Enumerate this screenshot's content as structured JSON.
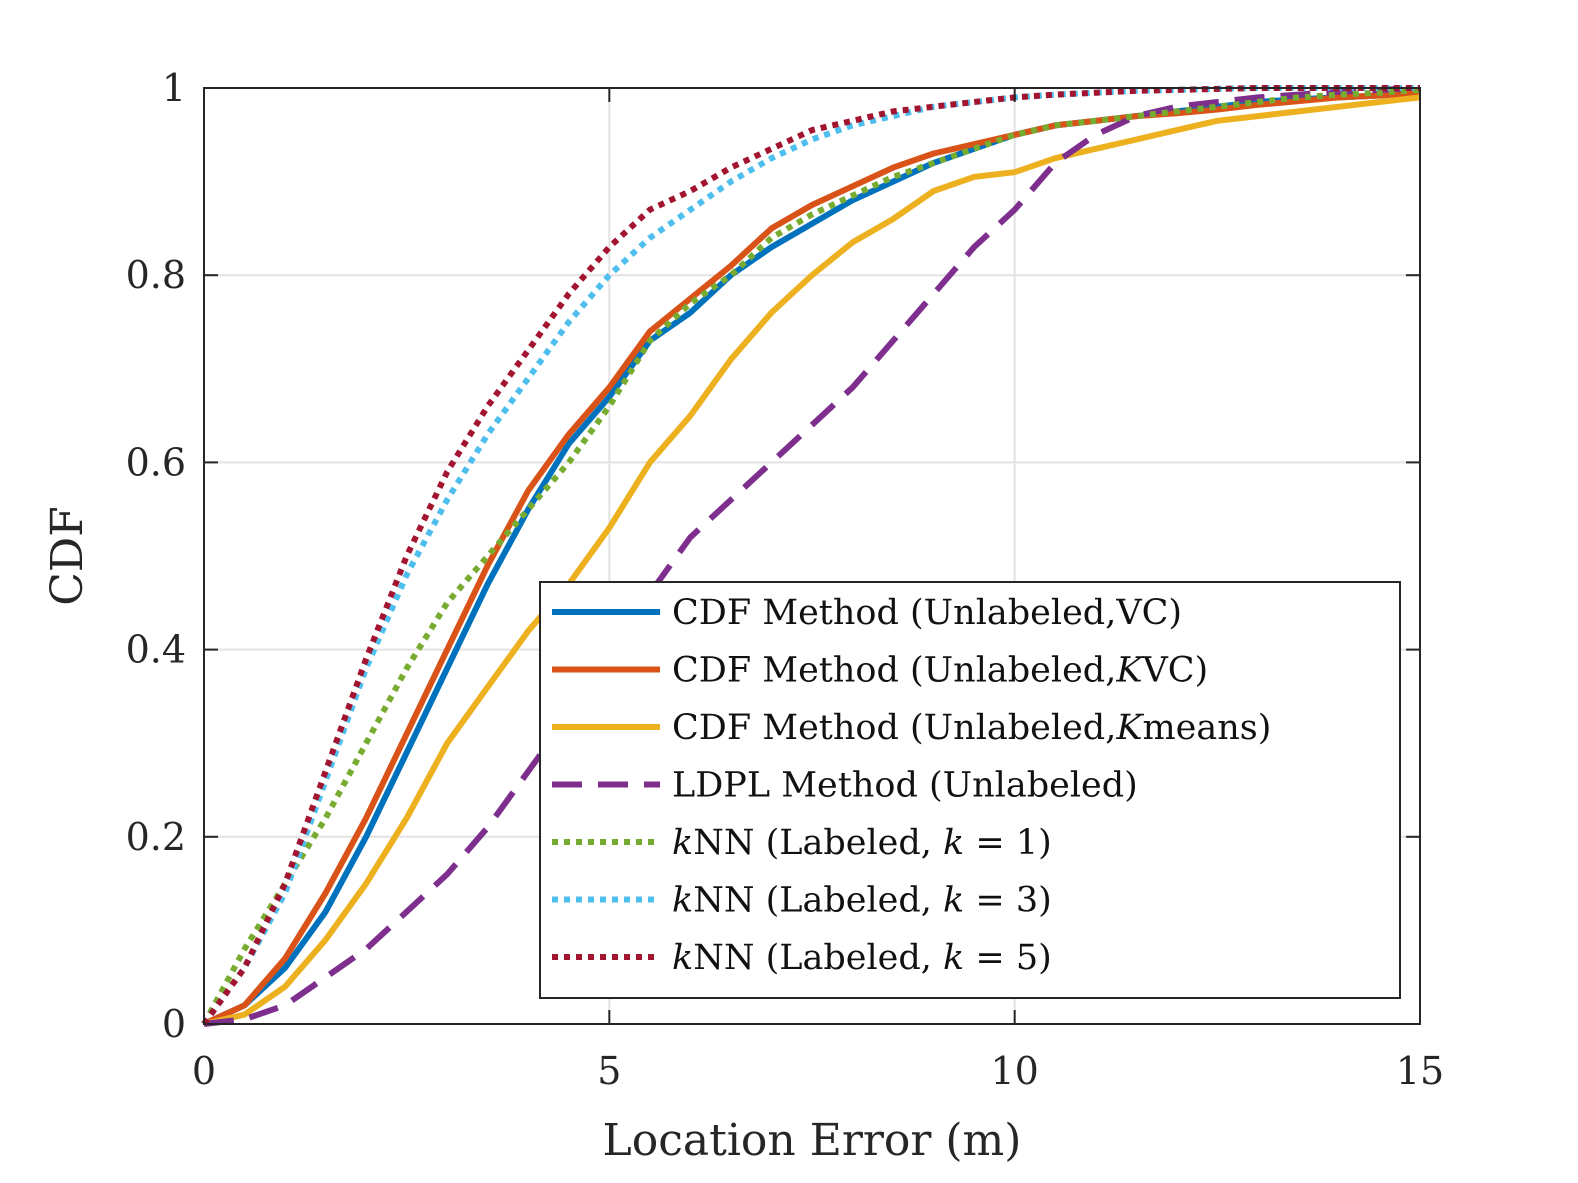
{
  "chart_data": {
    "type": "line",
    "title": "",
    "xlabel": "Location Error (m)",
    "ylabel": "CDF",
    "xlim": [
      0,
      15
    ],
    "ylim": [
      0,
      1
    ],
    "xticks": [
      0,
      5,
      10,
      15
    ],
    "xtick_labels": [
      "0",
      "5",
      "10",
      "15"
    ],
    "yticks": [
      0,
      0.2,
      0.4,
      0.6,
      0.8,
      1
    ],
    "ytick_labels": [
      "0",
      "0.2",
      "0.4",
      "0.6",
      "0.8",
      "1"
    ],
    "grid": true,
    "legend_position": "bottom-right",
    "series": [
      {
        "name": "CDF Method (Unlabeled,VC)",
        "color": "#0072BD",
        "dash": "solid",
        "x": [
          0,
          0.5,
          1,
          1.5,
          2,
          2.5,
          3,
          3.5,
          4,
          4.5,
          5,
          5.5,
          6,
          6.5,
          7,
          7.5,
          8,
          8.5,
          9,
          9.5,
          10,
          10.5,
          11,
          11.5,
          12,
          12.5,
          13,
          13.5,
          14,
          14.5,
          15
        ],
        "y": [
          0,
          0.02,
          0.06,
          0.12,
          0.2,
          0.29,
          0.38,
          0.47,
          0.55,
          0.62,
          0.67,
          0.73,
          0.76,
          0.8,
          0.83,
          0.855,
          0.88,
          0.9,
          0.92,
          0.935,
          0.95,
          0.96,
          0.965,
          0.97,
          0.975,
          0.98,
          0.985,
          0.988,
          0.99,
          0.992,
          0.995
        ]
      },
      {
        "name": "CDF Method (Unlabeled,KVC)",
        "color": "#D95319",
        "dash": "solid",
        "x": [
          0,
          0.5,
          1,
          1.5,
          2,
          2.5,
          3,
          3.5,
          4,
          4.5,
          5,
          5.5,
          6,
          6.5,
          7,
          7.5,
          8,
          8.5,
          9,
          9.5,
          10,
          10.5,
          11,
          11.5,
          12,
          12.5,
          13,
          13.5,
          14,
          14.5,
          15
        ],
        "y": [
          0,
          0.02,
          0.07,
          0.14,
          0.22,
          0.31,
          0.4,
          0.49,
          0.57,
          0.63,
          0.68,
          0.74,
          0.775,
          0.81,
          0.85,
          0.875,
          0.895,
          0.915,
          0.93,
          0.94,
          0.95,
          0.96,
          0.965,
          0.97,
          0.973,
          0.977,
          0.982,
          0.986,
          0.99,
          0.992,
          0.995
        ]
      },
      {
        "name": "CDF Method (Unlabeled,Kmeans)",
        "color": "#EDB120",
        "dash": "solid",
        "x": [
          0,
          0.5,
          1,
          1.5,
          2,
          2.5,
          3,
          3.5,
          4,
          4.5,
          5,
          5.5,
          6,
          6.5,
          7,
          7.5,
          8,
          8.5,
          9,
          9.5,
          10,
          10.5,
          11,
          11.5,
          12,
          12.5,
          13,
          13.5,
          14,
          14.5,
          15
        ],
        "y": [
          0,
          0.01,
          0.04,
          0.09,
          0.15,
          0.22,
          0.3,
          0.36,
          0.42,
          0.47,
          0.53,
          0.6,
          0.65,
          0.71,
          0.76,
          0.8,
          0.835,
          0.86,
          0.89,
          0.905,
          0.91,
          0.925,
          0.935,
          0.945,
          0.955,
          0.965,
          0.97,
          0.975,
          0.98,
          0.985,
          0.99
        ]
      },
      {
        "name": "LDPL Method (Unlabeled)",
        "color": "#7E2F8E",
        "dash": "dashed",
        "x": [
          0,
          0.5,
          1,
          1.5,
          2,
          2.5,
          3,
          3.5,
          4,
          4.5,
          5,
          5.5,
          6,
          6.5,
          7,
          7.5,
          8,
          8.5,
          9,
          9.5,
          10,
          10.5,
          11,
          11.5,
          12,
          12.5,
          13,
          13.5,
          14,
          14.5,
          15
        ],
        "y": [
          0,
          0.005,
          0.02,
          0.05,
          0.08,
          0.12,
          0.16,
          0.21,
          0.27,
          0.33,
          0.39,
          0.46,
          0.52,
          0.56,
          0.6,
          0.64,
          0.68,
          0.73,
          0.78,
          0.83,
          0.87,
          0.92,
          0.95,
          0.97,
          0.98,
          0.985,
          0.99,
          0.993,
          0.996,
          0.998,
          1
        ]
      },
      {
        "name": "kNN (Labeled, k = 1)",
        "color": "#77AC30",
        "dash": "dotted",
        "x": [
          0,
          0.5,
          1,
          1.5,
          2,
          2.5,
          3,
          3.5,
          4,
          4.5,
          5,
          5.5,
          6,
          6.5,
          7,
          7.5,
          8,
          8.5,
          9,
          9.5,
          10,
          10.5,
          11,
          11.5,
          12,
          12.5,
          13,
          13.5,
          14,
          14.5,
          15
        ],
        "y": [
          0,
          0.08,
          0.15,
          0.22,
          0.3,
          0.38,
          0.45,
          0.5,
          0.55,
          0.6,
          0.66,
          0.73,
          0.77,
          0.8,
          0.84,
          0.865,
          0.885,
          0.905,
          0.92,
          0.935,
          0.95,
          0.96,
          0.965,
          0.97,
          0.975,
          0.98,
          0.985,
          0.99,
          0.993,
          0.995,
          0.998
        ]
      },
      {
        "name": "kNN (Labeled, k = 3)",
        "color": "#4DBEEE",
        "dash": "dotted",
        "x": [
          0,
          0.5,
          1,
          1.5,
          2,
          2.5,
          3,
          3.5,
          4,
          4.5,
          5,
          5.5,
          6,
          6.5,
          7,
          7.5,
          8,
          8.5,
          9,
          9.5,
          10,
          10.5,
          11,
          11.5,
          12,
          12.5,
          13,
          13.5,
          14,
          14.5,
          15
        ],
        "y": [
          0,
          0.06,
          0.14,
          0.26,
          0.38,
          0.48,
          0.56,
          0.63,
          0.69,
          0.75,
          0.8,
          0.84,
          0.87,
          0.9,
          0.925,
          0.945,
          0.96,
          0.97,
          0.98,
          0.985,
          0.99,
          0.993,
          0.995,
          0.997,
          0.998,
          0.999,
          1,
          1,
          1,
          1,
          1
        ]
      },
      {
        "name": "kNN (Labeled, k = 5)",
        "color": "#A2142F",
        "dash": "dotted",
        "x": [
          0,
          0.5,
          1,
          1.5,
          2,
          2.5,
          3,
          3.5,
          4,
          4.5,
          5,
          5.5,
          6,
          6.5,
          7,
          7.5,
          8,
          8.5,
          9,
          9.5,
          10,
          10.5,
          11,
          11.5,
          12,
          12.5,
          13,
          13.5,
          14,
          14.5,
          15
        ],
        "y": [
          0,
          0.06,
          0.15,
          0.27,
          0.39,
          0.5,
          0.59,
          0.66,
          0.72,
          0.78,
          0.83,
          0.87,
          0.89,
          0.915,
          0.935,
          0.955,
          0.965,
          0.975,
          0.98,
          0.985,
          0.99,
          0.993,
          0.995,
          0.997,
          0.998,
          0.999,
          1,
          1,
          1,
          1,
          1
        ]
      }
    ]
  },
  "legend": {
    "items": [
      {
        "prefix": "CDF Method (Unlabeled,",
        "italic": "",
        "suffix": "VC)"
      },
      {
        "prefix": "CDF Method (Unlabeled,",
        "italic": "K",
        "suffix": "VC)"
      },
      {
        "prefix": "CDF Method (Unlabeled,",
        "italic": "K",
        "suffix": "means)"
      },
      {
        "prefix": "LDPL Method (Unlabeled)",
        "italic": "",
        "suffix": ""
      },
      {
        "prefix": "",
        "italic": "k",
        "suffix": "NN (Labeled, ",
        "italic2": "k",
        "suffix2": " = 1)"
      },
      {
        "prefix": "",
        "italic": "k",
        "suffix": "NN (Labeled, ",
        "italic2": "k",
        "suffix2": " = 3)"
      },
      {
        "prefix": "",
        "italic": "k",
        "suffix": "NN (Labeled, ",
        "italic2": "k",
        "suffix2": " = 5)"
      }
    ]
  }
}
